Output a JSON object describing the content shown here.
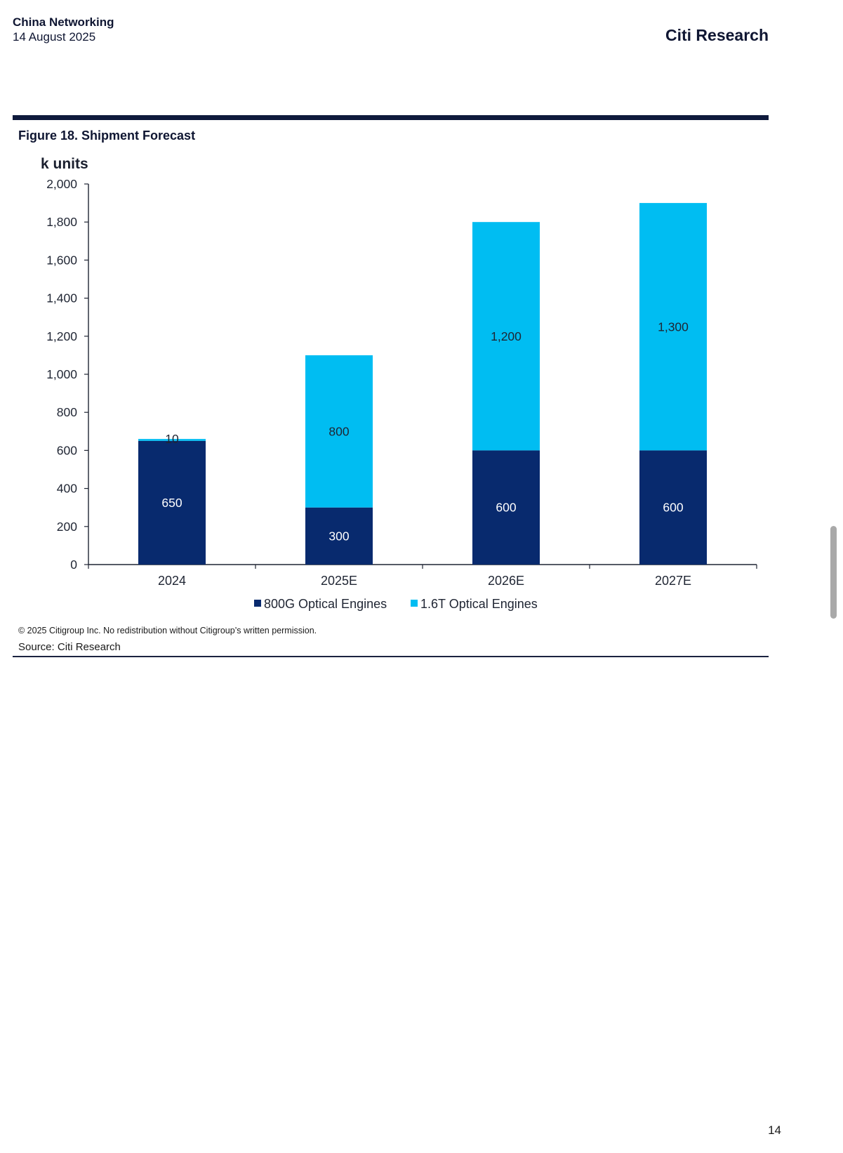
{
  "header": {
    "section": "China Networking",
    "date": "14 August 2025",
    "brand": "Citi Research"
  },
  "figure": {
    "title": "Figure 18. Shipment Forecast"
  },
  "footer": {
    "copyright": "© 2025 Citigroup Inc. No redistribution without Citigroup’s written permission.",
    "source": "Source: Citi Research"
  },
  "page_number": "14",
  "colors": {
    "series_800g": "#082a6e",
    "series_1_6t": "#00bdf2",
    "rule": "#0f1a3c"
  },
  "chart_data": {
    "type": "bar",
    "stacked": true,
    "ylabel": "k units",
    "ylim": [
      0,
      2000
    ],
    "yticks": [
      0,
      200,
      400,
      600,
      800,
      1000,
      1200,
      1400,
      1600,
      1800,
      2000
    ],
    "ytick_labels": [
      "0",
      "200",
      "400",
      "600",
      "800",
      "1,000",
      "1,200",
      "1,400",
      "1,600",
      "1,800",
      "2,000"
    ],
    "categories": [
      "2024",
      "2025E",
      "2026E",
      "2027E"
    ],
    "series": [
      {
        "name": "800G Optical Engines",
        "values": [
          650,
          300,
          600,
          600
        ],
        "labels": [
          "650",
          "300",
          "600",
          "600"
        ],
        "color": "#082a6e",
        "label_color": "#ffffff"
      },
      {
        "name": "1.6T Optical Engines",
        "values": [
          10,
          800,
          1200,
          1300
        ],
        "labels": [
          "10",
          "800",
          "1,200",
          "1,300"
        ],
        "color": "#00bdf2",
        "label_color": "#1f2533"
      }
    ],
    "legend": "bottom-center",
    "grid": false
  }
}
